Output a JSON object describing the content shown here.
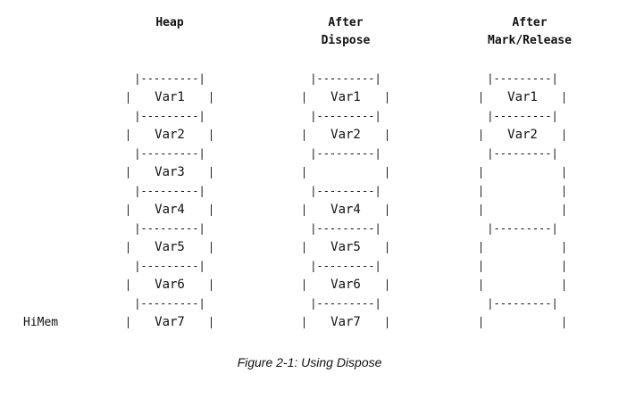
{
  "headers": {
    "heap": "Heap",
    "dispose": "After\nDispose",
    "release": "After\nMark/Release"
  },
  "separator": "|---------|",
  "columns": {
    "heap": [
      "Var1",
      "Var2",
      "Var3",
      "Var4",
      "Var5",
      "Var6",
      "Var7"
    ],
    "dispose": [
      "Var1",
      "Var2",
      "",
      "Var4",
      "Var5",
      "Var6",
      "Var7"
    ],
    "release": [
      "Var1",
      "Var2",
      "",
      "",
      "",
      "",
      ""
    ]
  },
  "separators_visible": {
    "heap": [
      true,
      true,
      true,
      true,
      true,
      true,
      true
    ],
    "dispose": [
      true,
      true,
      true,
      true,
      true,
      true,
      true
    ],
    "release": [
      true,
      true,
      true,
      false,
      true,
      false,
      true
    ]
  },
  "row_label": "HiMem",
  "caption": "Figure 2-1: Using Dispose"
}
